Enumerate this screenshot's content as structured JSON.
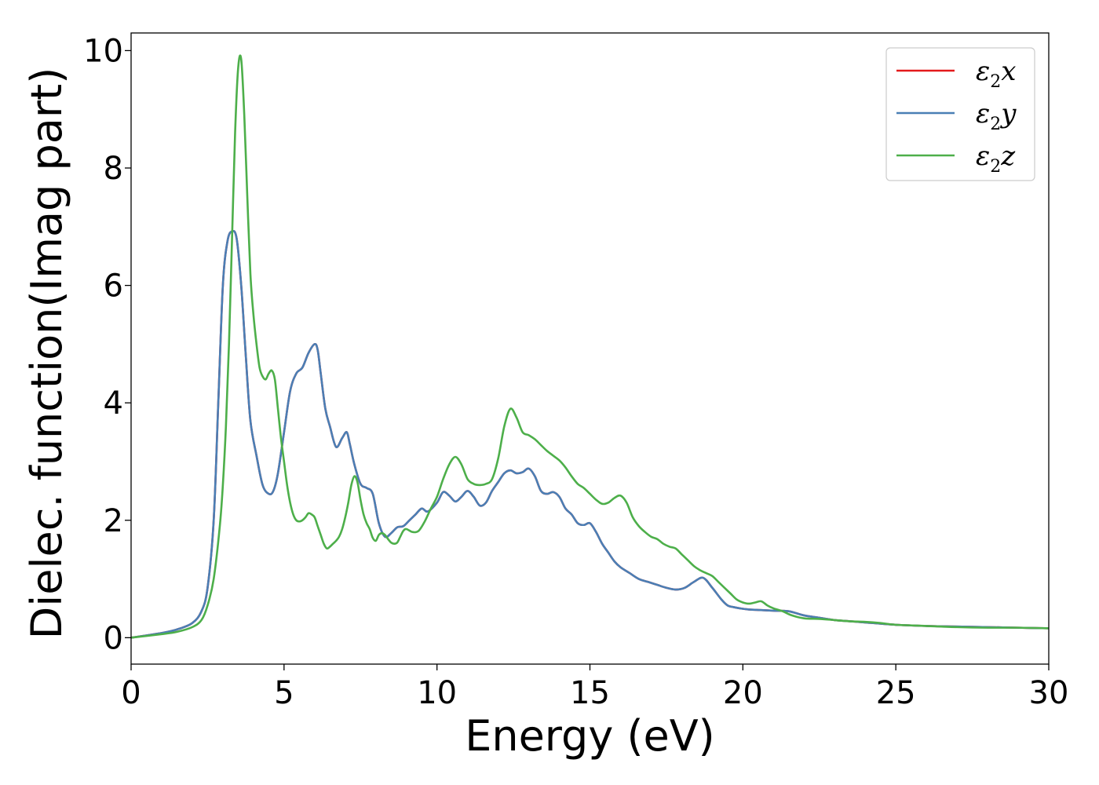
{
  "chart_data": {
    "type": "line",
    "xlabel": "Energy (eV)",
    "ylabel": "Dielec. function(Imag part)",
    "xlim": [
      0,
      30
    ],
    "ylim": [
      -0.45,
      10.3
    ],
    "xticks": [
      0,
      5,
      10,
      15,
      20,
      25,
      30
    ],
    "yticks": [
      0,
      2,
      4,
      6,
      8,
      10
    ],
    "grid": false,
    "legend_position": "top-right",
    "series": [
      {
        "name": "ε2x",
        "legend_base": "ε",
        "legend_sub": "2",
        "legend_tail": "x",
        "color": "#e41a1c",
        "x": [
          0,
          1,
          1.5,
          2,
          2.3,
          2.5,
          2.7,
          2.85,
          3.0,
          3.15,
          3.3,
          3.45,
          3.6,
          3.75,
          3.9,
          4.1,
          4.3,
          4.5,
          4.65,
          4.8,
          5.0,
          5.2,
          5.4,
          5.6,
          5.8,
          6.0,
          6.1,
          6.2,
          6.35,
          6.5,
          6.7,
          6.9,
          7.05,
          7.15,
          7.3,
          7.5,
          7.7,
          7.9,
          8.1,
          8.3,
          8.5,
          8.7,
          8.9,
          9.1,
          9.3,
          9.5,
          9.7,
          10.0,
          10.2,
          10.4,
          10.6,
          10.8,
          11.0,
          11.2,
          11.4,
          11.6,
          11.8,
          12.0,
          12.2,
          12.4,
          12.6,
          12.8,
          13.0,
          13.2,
          13.4,
          13.6,
          13.8,
          14.0,
          14.2,
          14.4,
          14.6,
          14.8,
          15.0,
          15.2,
          15.4,
          15.6,
          15.8,
          16.0,
          16.3,
          16.6,
          16.9,
          17.2,
          17.5,
          17.8,
          18.1,
          18.4,
          18.7,
          19.0,
          19.3,
          19.5,
          19.7,
          19.9,
          20.2,
          20.6,
          21.0,
          21.5,
          22.0,
          22.5,
          23.0,
          23.5,
          24.0,
          25.0,
          26.0,
          27.0,
          28.0,
          29.0,
          30.0
        ],
        "y": [
          0,
          0.08,
          0.14,
          0.25,
          0.45,
          0.85,
          2.0,
          4.0,
          6.0,
          6.75,
          6.92,
          6.8,
          6.0,
          4.8,
          3.7,
          3.1,
          2.6,
          2.45,
          2.5,
          2.8,
          3.5,
          4.2,
          4.5,
          4.6,
          4.85,
          5.0,
          4.9,
          4.5,
          3.9,
          3.6,
          3.25,
          3.4,
          3.5,
          3.3,
          2.95,
          2.62,
          2.55,
          2.45,
          1.95,
          1.72,
          1.78,
          1.88,
          1.9,
          2.0,
          2.1,
          2.2,
          2.15,
          2.3,
          2.48,
          2.42,
          2.32,
          2.4,
          2.5,
          2.4,
          2.25,
          2.3,
          2.5,
          2.65,
          2.8,
          2.85,
          2.8,
          2.82,
          2.88,
          2.75,
          2.5,
          2.45,
          2.48,
          2.4,
          2.2,
          2.1,
          1.95,
          1.92,
          1.95,
          1.8,
          1.6,
          1.45,
          1.3,
          1.2,
          1.1,
          1.0,
          0.95,
          0.9,
          0.85,
          0.82,
          0.85,
          0.95,
          1.02,
          0.85,
          0.65,
          0.55,
          0.52,
          0.5,
          0.48,
          0.47,
          0.46,
          0.45,
          0.38,
          0.34,
          0.3,
          0.28,
          0.26,
          0.22,
          0.2,
          0.19,
          0.18,
          0.17,
          0.16
        ]
      },
      {
        "name": "ε2y",
        "legend_base": "ε",
        "legend_sub": "2",
        "legend_tail": "y",
        "color": "#4a7fb5",
        "x": [
          0,
          1,
          1.5,
          2,
          2.3,
          2.5,
          2.7,
          2.85,
          3.0,
          3.15,
          3.3,
          3.45,
          3.6,
          3.75,
          3.9,
          4.1,
          4.3,
          4.5,
          4.65,
          4.8,
          5.0,
          5.2,
          5.4,
          5.6,
          5.8,
          6.0,
          6.1,
          6.2,
          6.35,
          6.5,
          6.7,
          6.9,
          7.05,
          7.15,
          7.3,
          7.5,
          7.7,
          7.9,
          8.1,
          8.3,
          8.5,
          8.7,
          8.9,
          9.1,
          9.3,
          9.5,
          9.7,
          10.0,
          10.2,
          10.4,
          10.6,
          10.8,
          11.0,
          11.2,
          11.4,
          11.6,
          11.8,
          12.0,
          12.2,
          12.4,
          12.6,
          12.8,
          13.0,
          13.2,
          13.4,
          13.6,
          13.8,
          14.0,
          14.2,
          14.4,
          14.6,
          14.8,
          15.0,
          15.2,
          15.4,
          15.6,
          15.8,
          16.0,
          16.3,
          16.6,
          16.9,
          17.2,
          17.5,
          17.8,
          18.1,
          18.4,
          18.7,
          19.0,
          19.3,
          19.5,
          19.7,
          19.9,
          20.2,
          20.6,
          21.0,
          21.5,
          22.0,
          22.5,
          23.0,
          23.5,
          24.0,
          25.0,
          26.0,
          27.0,
          28.0,
          29.0,
          30.0
        ],
        "y": [
          0,
          0.08,
          0.14,
          0.25,
          0.45,
          0.85,
          2.0,
          4.0,
          6.0,
          6.75,
          6.92,
          6.8,
          6.0,
          4.8,
          3.7,
          3.1,
          2.6,
          2.45,
          2.5,
          2.8,
          3.5,
          4.2,
          4.5,
          4.6,
          4.85,
          5.0,
          4.9,
          4.5,
          3.9,
          3.6,
          3.25,
          3.4,
          3.5,
          3.3,
          2.95,
          2.62,
          2.55,
          2.45,
          1.95,
          1.72,
          1.78,
          1.88,
          1.9,
          2.0,
          2.1,
          2.2,
          2.15,
          2.3,
          2.48,
          2.42,
          2.32,
          2.4,
          2.5,
          2.4,
          2.25,
          2.3,
          2.5,
          2.65,
          2.8,
          2.85,
          2.8,
          2.82,
          2.88,
          2.75,
          2.5,
          2.45,
          2.48,
          2.4,
          2.2,
          2.1,
          1.95,
          1.92,
          1.95,
          1.8,
          1.6,
          1.45,
          1.3,
          1.2,
          1.1,
          1.0,
          0.95,
          0.9,
          0.85,
          0.82,
          0.85,
          0.95,
          1.02,
          0.85,
          0.65,
          0.55,
          0.52,
          0.5,
          0.48,
          0.47,
          0.46,
          0.45,
          0.38,
          0.34,
          0.3,
          0.28,
          0.26,
          0.22,
          0.2,
          0.19,
          0.18,
          0.17,
          0.16
        ]
      },
      {
        "name": "ε2z",
        "legend_base": "ε",
        "legend_sub": "2",
        "legend_tail": "z",
        "color": "#4daf4a",
        "x": [
          0,
          1,
          1.5,
          2,
          2.3,
          2.5,
          2.7,
          2.9,
          3.0,
          3.1,
          3.2,
          3.3,
          3.4,
          3.5,
          3.6,
          3.7,
          3.8,
          3.9,
          4.0,
          4.1,
          4.2,
          4.3,
          4.4,
          4.5,
          4.6,
          4.7,
          4.8,
          4.9,
          5.0,
          5.1,
          5.2,
          5.3,
          5.4,
          5.5,
          5.6,
          5.7,
          5.8,
          5.9,
          6.0,
          6.1,
          6.2,
          6.3,
          6.4,
          6.5,
          6.6,
          6.7,
          6.8,
          6.9,
          7.0,
          7.1,
          7.2,
          7.3,
          7.4,
          7.5,
          7.6,
          7.7,
          7.8,
          7.9,
          8.0,
          8.1,
          8.2,
          8.3,
          8.4,
          8.5,
          8.6,
          8.7,
          8.8,
          8.9,
          9.0,
          9.2,
          9.4,
          9.6,
          9.8,
          10.0,
          10.2,
          10.4,
          10.6,
          10.8,
          11.0,
          11.2,
          11.4,
          11.6,
          11.8,
          12.0,
          12.2,
          12.4,
          12.6,
          12.8,
          13.0,
          13.2,
          13.4,
          13.6,
          13.8,
          14.0,
          14.2,
          14.4,
          14.6,
          14.8,
          15.0,
          15.2,
          15.4,
          15.6,
          15.8,
          16.0,
          16.2,
          16.4,
          16.6,
          16.8,
          17.0,
          17.2,
          17.4,
          17.6,
          17.8,
          18.0,
          18.2,
          18.4,
          18.6,
          18.8,
          19.0,
          19.2,
          19.4,
          19.6,
          19.8,
          20.0,
          20.2,
          20.4,
          20.6,
          20.8,
          21.0,
          21.3,
          21.6,
          22.0,
          22.5,
          23.0,
          23.5,
          24.0,
          24.5,
          25.0,
          26.0,
          27.0,
          28.0,
          29.0,
          30.0
        ],
        "y": [
          0,
          0.06,
          0.1,
          0.18,
          0.3,
          0.55,
          1.0,
          1.9,
          2.6,
          3.6,
          5.0,
          6.8,
          8.6,
          9.7,
          9.85,
          8.9,
          7.5,
          6.2,
          5.5,
          5.0,
          4.6,
          4.45,
          4.4,
          4.5,
          4.55,
          4.4,
          3.9,
          3.4,
          3.0,
          2.6,
          2.3,
          2.1,
          2.0,
          1.98,
          2.0,
          2.05,
          2.12,
          2.1,
          2.05,
          1.9,
          1.75,
          1.6,
          1.52,
          1.55,
          1.6,
          1.65,
          1.72,
          1.85,
          2.05,
          2.3,
          2.6,
          2.75,
          2.65,
          2.35,
          2.1,
          1.95,
          1.85,
          1.7,
          1.65,
          1.75,
          1.78,
          1.75,
          1.68,
          1.62,
          1.6,
          1.62,
          1.72,
          1.82,
          1.85,
          1.8,
          1.82,
          1.98,
          2.2,
          2.4,
          2.7,
          2.95,
          3.08,
          2.95,
          2.7,
          2.62,
          2.6,
          2.62,
          2.7,
          3.05,
          3.6,
          3.9,
          3.75,
          3.5,
          3.45,
          3.38,
          3.28,
          3.18,
          3.1,
          3.02,
          2.9,
          2.75,
          2.62,
          2.55,
          2.45,
          2.35,
          2.28,
          2.3,
          2.38,
          2.42,
          2.3,
          2.05,
          1.9,
          1.8,
          1.72,
          1.68,
          1.6,
          1.55,
          1.52,
          1.42,
          1.32,
          1.22,
          1.15,
          1.1,
          1.05,
          0.95,
          0.85,
          0.75,
          0.65,
          0.6,
          0.58,
          0.6,
          0.62,
          0.55,
          0.5,
          0.45,
          0.38,
          0.33,
          0.32,
          0.3,
          0.28,
          0.27,
          0.25,
          0.22,
          0.2,
          0.18,
          0.17,
          0.17,
          0.16
        ]
      }
    ]
  }
}
